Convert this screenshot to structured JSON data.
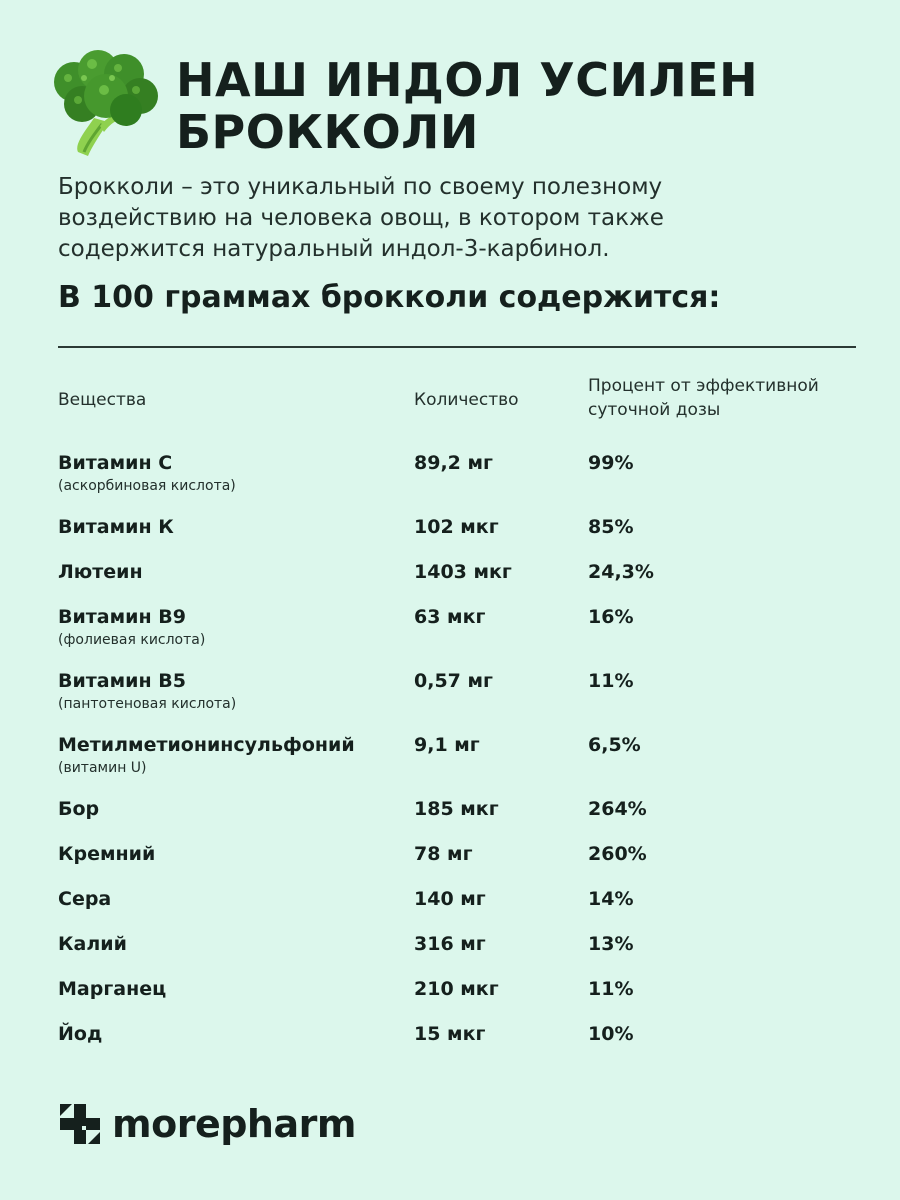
{
  "header": {
    "title_line1": "НАШ ИНДОЛ УСИЛЕН",
    "title_line2": "БРОККОЛИ"
  },
  "intro": {
    "line1": "Брокколи – это уникальный по своему полезному",
    "line2": "воздействию на человека овощ, в котором также",
    "line3": "содержится натуральный индол-3-карбинол."
  },
  "subheading": "В 100 граммах брокколи содержится:",
  "table": {
    "headers": {
      "substance": "Вещества",
      "amount": "Количество",
      "percent_line1": "Процент от эффективной",
      "percent_line2": "суточной дозы"
    },
    "rows": [
      {
        "name": "Витамин С",
        "note": "(аскорбиновая кислота)",
        "amount": "89,2 мг",
        "percent": "99%"
      },
      {
        "name": "Витамин К",
        "note": "",
        "amount": "102 мкг",
        "percent": "85%"
      },
      {
        "name": "Лютеин",
        "note": "",
        "amount": "1403 мкг",
        "percent": "24,3%"
      },
      {
        "name": "Витамин В9",
        "note": "(фолиевая кислота)",
        "amount": "63 мкг",
        "percent": "16%"
      },
      {
        "name": "Витамин В5",
        "note": "(пантотеновая кислота)",
        "amount": "0,57 мг",
        "percent": "11%"
      },
      {
        "name": "Метилметионинсульфоний",
        "note": "(витамин U)",
        "amount": "9,1 мг",
        "percent": "6,5%"
      },
      {
        "name": "Бор",
        "note": "",
        "amount": "185 мкг",
        "percent": "264%"
      },
      {
        "name": "Кремний",
        "note": "",
        "amount": "78 мг",
        "percent": "260%"
      },
      {
        "name": "Сера",
        "note": "",
        "amount": "140 мг",
        "percent": "14%"
      },
      {
        "name": "Калий",
        "note": "",
        "amount": "316 мг",
        "percent": "13%"
      },
      {
        "name": "Марганец",
        "note": "",
        "amount": "210 мкг",
        "percent": "11%"
      },
      {
        "name": "Йод",
        "note": "",
        "amount": "15 мкг",
        "percent": "10%"
      }
    ]
  },
  "footer": {
    "brand": "morepharm",
    "logo_icon": "plus-cross-icon"
  },
  "colors": {
    "background": "#dcf7ec",
    "text": "#15201d",
    "broccoli_dark": "#2f7d1f",
    "broccoli_light": "#7bc043"
  },
  "icons": {
    "broccoli": "broccoli-icon"
  }
}
